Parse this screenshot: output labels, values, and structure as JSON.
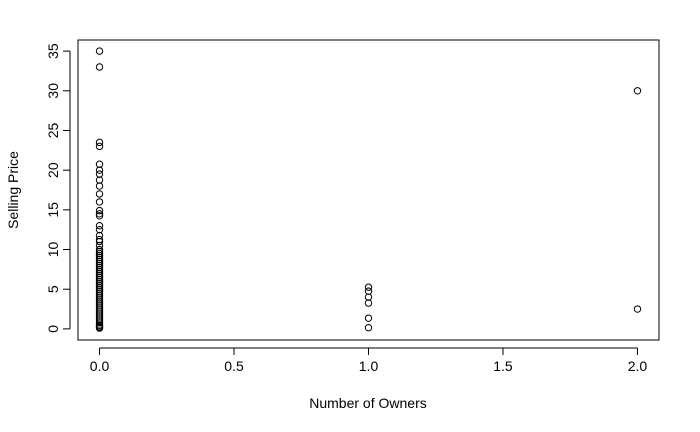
{
  "chart_data": {
    "type": "scatter",
    "title": "",
    "xlabel": "Number of Owners",
    "ylabel": "Selling Price",
    "xlim": [
      -0.08,
      2.08
    ],
    "ylim": [
      -1.4,
      36.4
    ],
    "x_ticks": [
      0.0,
      0.5,
      1.0,
      1.5,
      2.0
    ],
    "x_tick_labels": [
      "0.0",
      "0.5",
      "1.0",
      "1.5",
      "2.0"
    ],
    "y_ticks": [
      0,
      5,
      10,
      15,
      20,
      25,
      30,
      35
    ],
    "y_tick_labels": [
      "0",
      "5",
      "10",
      "15",
      "20",
      "25",
      "30",
      "35"
    ],
    "grid": false,
    "marker": "open-circle",
    "series": [
      {
        "points": [
          [
            0,
            35.0
          ],
          [
            0,
            33.0
          ],
          [
            0,
            23.5
          ],
          [
            0,
            23.0
          ],
          [
            0,
            20.75
          ],
          [
            0,
            20.0
          ],
          [
            0,
            19.5
          ],
          [
            0,
            18.75
          ],
          [
            0,
            18.0
          ],
          [
            0,
            17.0
          ],
          [
            0,
            16.0
          ],
          [
            0,
            14.9
          ],
          [
            0,
            14.5
          ],
          [
            0,
            14.25
          ],
          [
            0,
            13.0
          ],
          [
            0,
            12.5
          ],
          [
            0,
            11.75
          ],
          [
            0,
            11.25
          ],
          [
            0,
            11.0
          ],
          [
            0,
            10.5
          ],
          [
            0,
            10.0
          ],
          [
            0,
            9.75
          ],
          [
            0,
            9.5
          ],
          [
            0,
            9.25
          ],
          [
            0,
            9.0
          ],
          [
            0,
            8.75
          ],
          [
            0,
            8.5
          ],
          [
            0,
            8.25
          ],
          [
            0,
            8.0
          ],
          [
            0,
            7.75
          ],
          [
            0,
            7.5
          ],
          [
            0,
            7.25
          ],
          [
            0,
            7.0
          ],
          [
            0,
            6.75
          ],
          [
            0,
            6.5
          ],
          [
            0,
            6.25
          ],
          [
            0,
            6.0
          ],
          [
            0,
            5.75
          ],
          [
            0,
            5.5
          ],
          [
            0,
            5.25
          ],
          [
            0,
            5.0
          ],
          [
            0,
            4.75
          ],
          [
            0,
            4.5
          ],
          [
            0,
            4.25
          ],
          [
            0,
            4.0
          ],
          [
            0,
            3.75
          ],
          [
            0,
            3.5
          ],
          [
            0,
            3.25
          ],
          [
            0,
            3.0
          ],
          [
            0,
            2.75
          ],
          [
            0,
            2.5
          ],
          [
            0,
            2.25
          ],
          [
            0,
            2.0
          ],
          [
            0,
            1.75
          ],
          [
            0,
            1.5
          ],
          [
            0,
            1.25
          ],
          [
            0,
            1.0
          ],
          [
            0,
            0.75
          ],
          [
            0,
            0.5
          ],
          [
            0,
            0.35
          ],
          [
            0,
            0.2
          ],
          [
            0,
            0.1
          ],
          [
            1,
            5.25
          ],
          [
            1,
            4.75
          ],
          [
            1,
            4.0
          ],
          [
            1,
            3.25
          ],
          [
            1,
            1.35
          ],
          [
            1,
            0.15
          ],
          [
            2,
            30.0
          ],
          [
            2,
            2.5
          ]
        ]
      }
    ]
  }
}
